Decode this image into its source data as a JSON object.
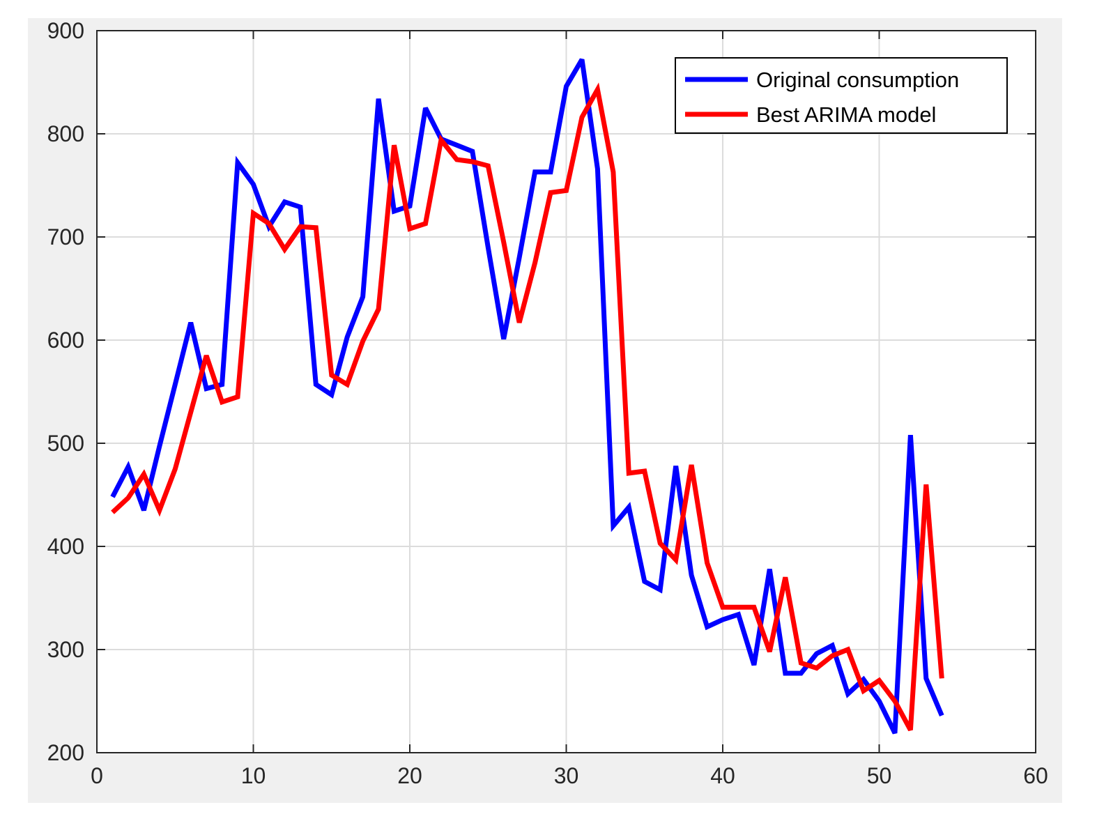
{
  "chart_data": {
    "type": "line",
    "title": "",
    "xlabel": "",
    "ylabel": "",
    "xlim": [
      0,
      60
    ],
    "ylim": [
      200,
      900
    ],
    "xticks": [
      0,
      10,
      20,
      30,
      40,
      50,
      60
    ],
    "yticks": [
      200,
      300,
      400,
      500,
      600,
      700,
      800,
      900
    ],
    "xtick_labels": [
      "0",
      "10",
      "20",
      "30",
      "40",
      "50",
      "60"
    ],
    "ytick_labels": [
      "200",
      "300",
      "400",
      "500",
      "600",
      "700",
      "800",
      "900"
    ],
    "grid": true,
    "legend_position": "top-right",
    "x": [
      1,
      2,
      3,
      4,
      5,
      6,
      7,
      8,
      9,
      10,
      11,
      12,
      13,
      14,
      15,
      16,
      17,
      18,
      19,
      20,
      21,
      22,
      23,
      24,
      25,
      26,
      27,
      28,
      29,
      30,
      31,
      32,
      33,
      34,
      35,
      36,
      37,
      38,
      39,
      40,
      41,
      42,
      43,
      44,
      45,
      46,
      47,
      48,
      49,
      50,
      51,
      52,
      53,
      54
    ],
    "series": [
      {
        "name": "Original consumption",
        "color": "#0000ff",
        "values": [
          448,
          477,
          435,
          497,
          557,
          617,
          553,
          557,
          772,
          751,
          710,
          734,
          729,
          557,
          547,
          603,
          642,
          834,
          725,
          730,
          825,
          795,
          789,
          783,
          690,
          601,
          680,
          763,
          763,
          846,
          872,
          766,
          420,
          438,
          366,
          358,
          478,
          372,
          322,
          329,
          334,
          285,
          378,
          277,
          277,
          296,
          304,
          257,
          271,
          250,
          219,
          508,
          272,
          236
        ]
      },
      {
        "name": "Best ARIMA model",
        "color": "#ff0000",
        "values": [
          433,
          447,
          470,
          435,
          475,
          530,
          585,
          540,
          545,
          723,
          713,
          688,
          710,
          709,
          566,
          557,
          599,
          630,
          789,
          708,
          713,
          794,
          775,
          773,
          769,
          695,
          617,
          675,
          743,
          745,
          816,
          843,
          763,
          471,
          473,
          403,
          387,
          479,
          384,
          341,
          341,
          341,
          298,
          370,
          287,
          282,
          294,
          300,
          260,
          270,
          250,
          222,
          460,
          272
        ]
      }
    ]
  }
}
